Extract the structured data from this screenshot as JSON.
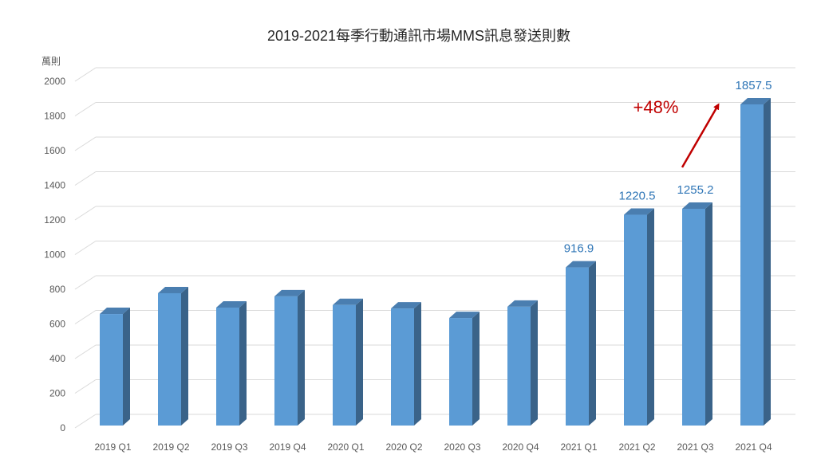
{
  "chart_data": {
    "type": "bar",
    "title": "2019-2021每季行動通訊市場MMS訊息發送則數",
    "xlabel": "",
    "ylabel": "萬則",
    "ylim": [
      0,
      2000
    ],
    "yticks": [
      0,
      200,
      400,
      600,
      800,
      1000,
      1200,
      1400,
      1600,
      1800,
      2000
    ],
    "grid": true,
    "legend": "none",
    "style": "3d-column",
    "categories": [
      "2019 Q1",
      "2019 Q2",
      "2019 Q3",
      "2019 Q4",
      "2020 Q1",
      "2020 Q2",
      "2020 Q3",
      "2020 Q4",
      "2021 Q1",
      "2021 Q2",
      "2021 Q3",
      "2021 Q4"
    ],
    "values": [
      648,
      768,
      685,
      750,
      700,
      680,
      625,
      690,
      916.9,
      1220.5,
      1255.2,
      1857.5
    ],
    "data_labels": [
      null,
      null,
      null,
      null,
      null,
      null,
      null,
      null,
      "916.9",
      "1220.5",
      "1255.2",
      "1857.5"
    ],
    "annotations": [
      {
        "text": "+48%",
        "type": "arrow",
        "from": "2021 Q3",
        "to": "2021 Q4",
        "color": "#C00000"
      }
    ]
  },
  "colors": {
    "bar_front": "#5B9BD5",
    "bar_top": "#4A7EB0",
    "bar_side": "#3A6389",
    "gridline": "#D9D9D9",
    "data_label": "#2E75B6",
    "annotation": "#C00000"
  }
}
